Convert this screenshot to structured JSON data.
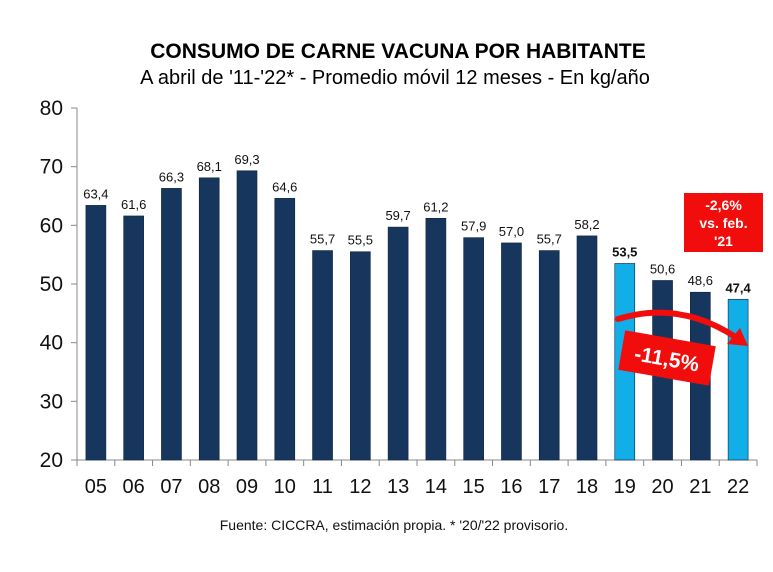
{
  "chart_data": {
    "type": "bar",
    "title": "CONSUMO DE CARNE VACUNA POR HABITANTE",
    "subtitle": "A abril de '11-'22* - Promedio móvil 12 meses -  En kg/año",
    "xlabel": "",
    "ylabel": "",
    "ylim": [
      20,
      80
    ],
    "yticks": [
      "20",
      "30",
      "40",
      "50",
      "60",
      "70",
      "80"
    ],
    "ytick_values": [
      20,
      30,
      40,
      50,
      60,
      70,
      80
    ],
    "categories": [
      "05",
      "06",
      "07",
      "08",
      "09",
      "10",
      "11",
      "12",
      "13",
      "14",
      "15",
      "16",
      "17",
      "18",
      "19",
      "20",
      "21",
      "22"
    ],
    "values": [
      63.4,
      61.6,
      66.3,
      68.1,
      69.3,
      64.6,
      55.7,
      55.5,
      59.7,
      61.2,
      57.9,
      57.0,
      55.7,
      58.2,
      53.5,
      50.6,
      48.6,
      47.4
    ],
    "labels": [
      "63,4",
      "61,6",
      "66,3",
      "68,1",
      "69,3",
      "64,6",
      "55,7",
      "55,5",
      "59,7",
      "61,2",
      "57,9",
      "57,0",
      "55,7",
      "58,2",
      "53,5",
      "50,6",
      "48,6",
      "47,4"
    ],
    "highlighted": [
      "19",
      "22"
    ],
    "grid": false,
    "legend": "none",
    "colors": {
      "bar": "#17365d",
      "highlight": "#12aee8",
      "annotation": "#f20d0d",
      "text": "#111111"
    },
    "annotations": {
      "box_lines": [
        "-2,6%",
        "vs. feb.",
        "'21"
      ],
      "change_badge": "-11,5%",
      "arrow_from": "19",
      "arrow_to": "22"
    },
    "source_note": "Fuente: CICCRA, estimación propia. * '20/'22 provisorio."
  }
}
